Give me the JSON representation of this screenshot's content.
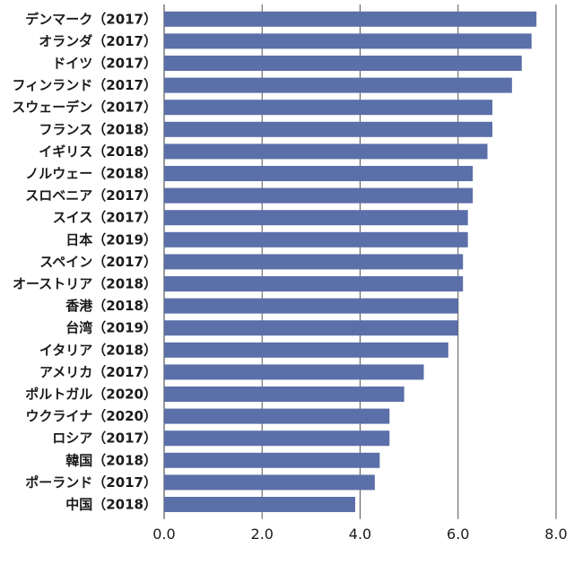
{
  "chart_data": {
    "type": "bar",
    "orientation": "horizontal",
    "title": "",
    "xlabel": "",
    "ylabel": "",
    "xlim": [
      0,
      8
    ],
    "xticks": [
      "0.0",
      "2.0",
      "4.0",
      "6.0",
      "8.0"
    ],
    "grid": true,
    "bar_color": "#5b6fa8",
    "categories": [
      "デンマーク（2017）",
      "オランダ（2017）",
      "ドイツ（2017）",
      "フィンランド（2017）",
      "スウェーデン（2017）",
      "フランス（2018）",
      "イギリス（2018）",
      "ノルウェー（2018）",
      "スロベニア（2017）",
      "スイス（2017）",
      "日本（2019）",
      "スペイン（2017）",
      "オーストリア（2018）",
      "香港（2018）",
      "台湾（2019）",
      "イタリア（2018）",
      "アメリカ（2017）",
      "ポルトガル（2020）",
      "ウクライナ（2020）",
      "ロシア（2017）",
      "韓国（2018）",
      "ポーランド（2017）",
      "中国（2018）"
    ],
    "values": [
      7.6,
      7.5,
      7.3,
      7.1,
      6.7,
      6.7,
      6.6,
      6.3,
      6.3,
      6.2,
      6.2,
      6.1,
      6.1,
      6.0,
      6.0,
      5.8,
      5.3,
      4.9,
      4.6,
      4.6,
      4.4,
      4.3,
      3.9
    ]
  }
}
